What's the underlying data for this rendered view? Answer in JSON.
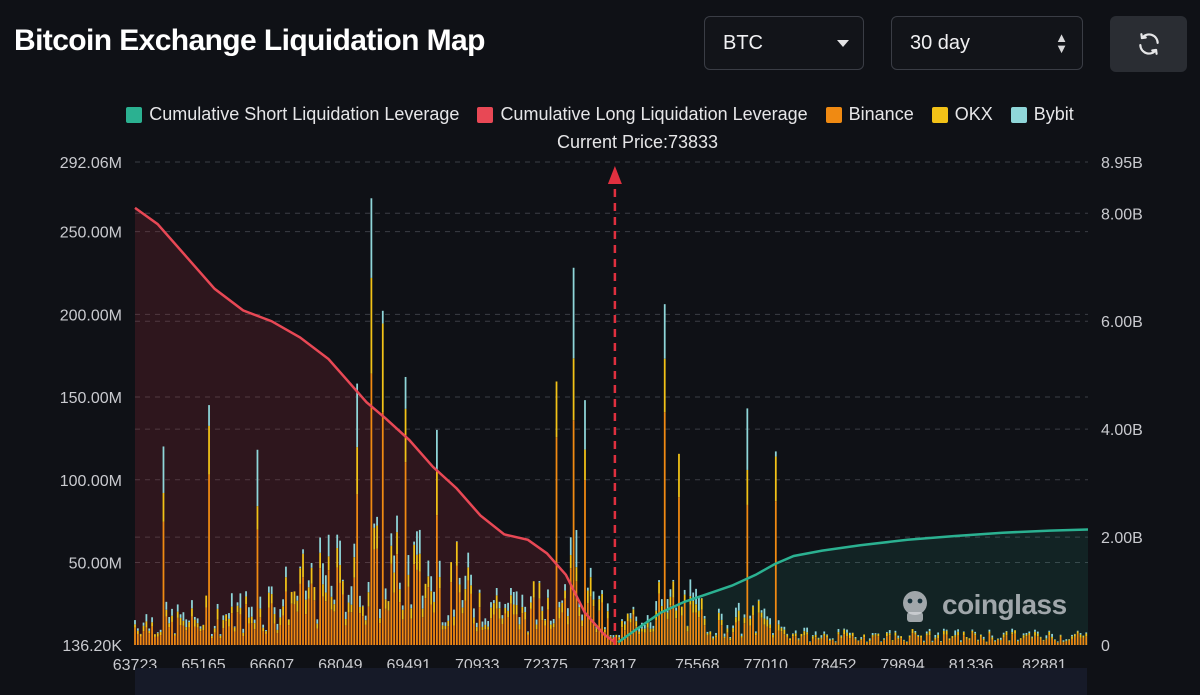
{
  "header": {
    "title": "Bitcoin Exchange Liquidation Map"
  },
  "controls": {
    "asset": {
      "value": "BTC"
    },
    "range": {
      "value": "30 day"
    },
    "refresh_icon": "refresh-icon"
  },
  "colors": {
    "short": "#2bb191",
    "long": "#e84855",
    "binance": "#f08a12",
    "okx": "#f2c217",
    "bybit": "#8fd6d9",
    "grid": "#3b3e45",
    "price_line": "#e0303f"
  },
  "watermark": {
    "text": "coinglass"
  },
  "chart_data": {
    "type": "bar",
    "title": "Bitcoin Exchange Liquidation Map",
    "current_price_label": "Current Price:73833",
    "current_price": 73833,
    "legend": [
      {
        "key": "short",
        "label": "Cumulative Short Liquidation Leverage"
      },
      {
        "key": "long",
        "label": "Cumulative Long Liquidation Leverage"
      },
      {
        "key": "binance",
        "label": "Binance"
      },
      {
        "key": "okx",
        "label": "OKX"
      },
      {
        "key": "bybit",
        "label": "Bybit"
      }
    ],
    "x_range": [
      63723,
      83800
    ],
    "x_ticks": [
      "63723",
      "65165",
      "66607",
      "68049",
      "69491",
      "70933",
      "72375",
      "73817",
      "75568",
      "77010",
      "78452",
      "79894",
      "81336",
      "82881"
    ],
    "y_left": {
      "range": [
        136200,
        292060000
      ],
      "ticks": [
        "292.06M",
        "250.00M",
        "200.00M",
        "150.00M",
        "100.00M",
        "50.00M",
        "136.20K"
      ]
    },
    "y_right": {
      "range": [
        0,
        8950000000
      ],
      "ticks": [
        "8.95B",
        "8.00B",
        "6.00B",
        "4.00B",
        "2.00B",
        "0"
      ]
    },
    "cumulative_long": {
      "x": [
        63723,
        64200,
        64800,
        65400,
        66000,
        66600,
        67200,
        67800,
        68200,
        68600,
        69000,
        69500,
        70000,
        70500,
        71000,
        71500,
        72000,
        72400,
        72800,
        73200,
        73600,
        73833
      ],
      "y": [
        8100000000.0,
        7800000000.0,
        7200000000.0,
        6600000000.0,
        6200000000.0,
        6000000000.0,
        5700000000.0,
        5300000000.0,
        4900000000.0,
        4500000000.0,
        4200000000.0,
        3800000000.0,
        3300000000.0,
        2900000000.0,
        2400000000.0,
        2050000000.0,
        1950000000.0,
        1700000000.0,
        1300000000.0,
        600000000.0,
        200000000.0,
        50000000.0
      ]
    },
    "cumulative_short": {
      "x": [
        73900,
        74300,
        74800,
        75300,
        75800,
        76300,
        76800,
        77200,
        77600,
        78200,
        79000,
        80000,
        81000,
        82000,
        83000,
        83800
      ],
      "y": [
        50000000.0,
        300000000.0,
        600000000.0,
        800000000.0,
        950000000.0,
        1100000000.0,
        1300000000.0,
        1500000000.0,
        1650000000.0,
        1750000000.0,
        1850000000.0,
        1950000000.0,
        2020000000.0,
        2080000000.0,
        2120000000.0,
        2140000000.0
      ]
    },
    "bars": {
      "x_start": 63723,
      "x_step": 60,
      "count": 335,
      "peaks": [
        {
          "x": 64300,
          "total": 120000000.0
        },
        {
          "x": 65300,
          "total": 145000000.0
        },
        {
          "x": 66300,
          "total": 118000000.0
        },
        {
          "x": 68400,
          "total": 158000000.0
        },
        {
          "x": 68700,
          "total": 270000000.0
        },
        {
          "x": 68950,
          "total": 202000000.0
        },
        {
          "x": 69400,
          "total": 162000000.0
        },
        {
          "x": 70100,
          "total": 130000000.0
        },
        {
          "x": 72600,
          "total": 158000000.0
        },
        {
          "x": 72950,
          "total": 228000000.0
        },
        {
          "x": 73200,
          "total": 148000000.0
        },
        {
          "x": 74900,
          "total": 206000000.0
        },
        {
          "x": 75200,
          "total": 115000000.0
        },
        {
          "x": 76650,
          "total": 143000000.0
        },
        {
          "x": 77200,
          "total": 117000000.0
        }
      ]
    }
  }
}
